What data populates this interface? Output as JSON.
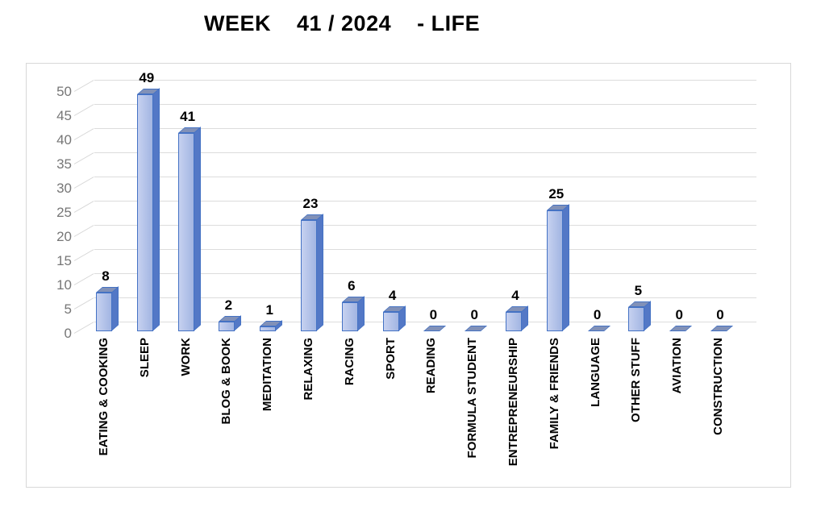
{
  "chart_data": {
    "type": "bar",
    "style": "3d-cylinderless excel bar chart, single series",
    "title": "WEEK    41 / 2024    - LIFE",
    "categories": [
      "EATING & COOKING",
      "SLEEP",
      "WORK",
      "BLOG & BOOK",
      "MEDITATION",
      "RELAXING",
      "RACING",
      "SPORT",
      "READING",
      "FORMULA STUDENT",
      "ENTREPRENEURSHIP",
      "FAMILY & FRIENDS",
      "LANGUAGE",
      "OTHER STUFF",
      "AVIATION",
      "CONSTRUCTION"
    ],
    "values": [
      8,
      49,
      41,
      2,
      1,
      23,
      6,
      4,
      0,
      0,
      4,
      25,
      0,
      5,
      0,
      0
    ],
    "data_labels_shown": true,
    "xlabel": "",
    "ylabel": "",
    "ylim": [
      0,
      50
    ],
    "yticks": [
      0,
      5,
      10,
      15,
      20,
      25,
      30,
      35,
      40,
      45,
      50
    ],
    "grid": true,
    "legend": false,
    "colors": {
      "bar_front_light": "#c6d1f0",
      "bar_front_dark": "#a2b5e2",
      "bar_side": "#5378c6",
      "bar_top": "#8191b8",
      "bar_border": "#4472c4",
      "gridline": "#dcdcdc",
      "axis_text": "#767676",
      "label_text": "#000000",
      "chart_border": "#d8d8d8",
      "background": "#ffffff"
    }
  }
}
